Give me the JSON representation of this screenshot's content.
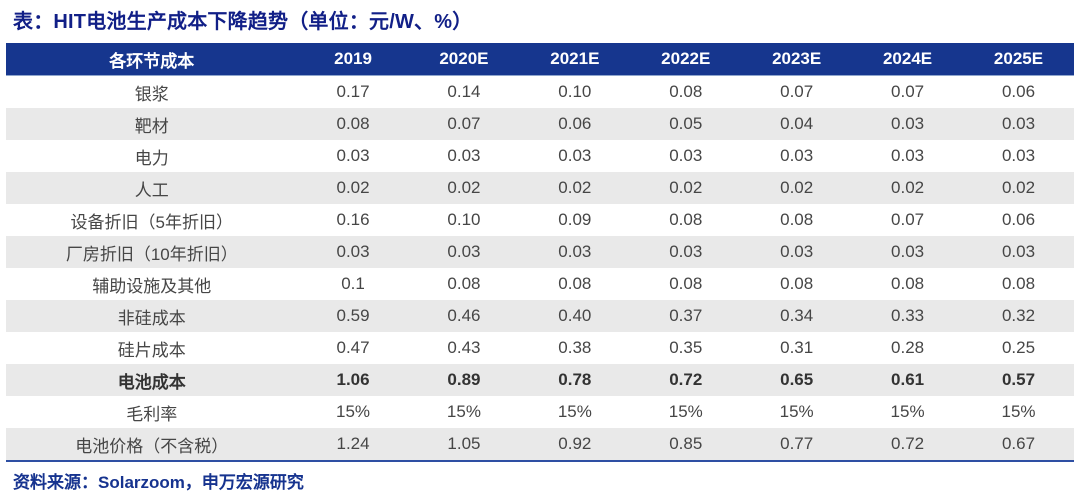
{
  "title": "表：HIT电池生产成本下降趋势（单位：元/W、%）",
  "source": "资料来源：Solarzoom，申万宏源研究",
  "colors": {
    "header_bg": "#16368E",
    "title_text": "#111F87",
    "stripe": "#E9E9E9",
    "bottom_rule": "#2E4FA3",
    "source_text": "#16338F",
    "body_text": "#464646"
  },
  "chart_data": {
    "type": "table",
    "title": "表：HIT电池生产成本下降趋势（单位：元/W、%）",
    "columns": [
      "各环节成本",
      "2019",
      "2020E",
      "2021E",
      "2022E",
      "2023E",
      "2024E",
      "2025E"
    ],
    "rows": [
      {
        "label": "银浆",
        "values": [
          "0.17",
          "0.14",
          "0.10",
          "0.08",
          "0.07",
          "0.07",
          "0.06"
        ],
        "bold": false
      },
      {
        "label": "靶材",
        "values": [
          "0.08",
          "0.07",
          "0.06",
          "0.05",
          "0.04",
          "0.03",
          "0.03"
        ],
        "bold": false
      },
      {
        "label": "电力",
        "values": [
          "0.03",
          "0.03",
          "0.03",
          "0.03",
          "0.03",
          "0.03",
          "0.03"
        ],
        "bold": false
      },
      {
        "label": "人工",
        "values": [
          "0.02",
          "0.02",
          "0.02",
          "0.02",
          "0.02",
          "0.02",
          "0.02"
        ],
        "bold": false
      },
      {
        "label": "设备折旧（5年折旧）",
        "values": [
          "0.16",
          "0.10",
          "0.09",
          "0.08",
          "0.08",
          "0.07",
          "0.06"
        ],
        "bold": false
      },
      {
        "label": "厂房折旧（10年折旧）",
        "values": [
          "0.03",
          "0.03",
          "0.03",
          "0.03",
          "0.03",
          "0.03",
          "0.03"
        ],
        "bold": false
      },
      {
        "label": "辅助设施及其他",
        "values": [
          "0.1",
          "0.08",
          "0.08",
          "0.08",
          "0.08",
          "0.08",
          "0.08"
        ],
        "bold": false
      },
      {
        "label": "非硅成本",
        "values": [
          "0.59",
          "0.46",
          "0.40",
          "0.37",
          "0.34",
          "0.33",
          "0.32"
        ],
        "bold": false
      },
      {
        "label": "硅片成本",
        "values": [
          "0.47",
          "0.43",
          "0.38",
          "0.35",
          "0.31",
          "0.28",
          "0.25"
        ],
        "bold": false
      },
      {
        "label": "电池成本",
        "values": [
          "1.06",
          "0.89",
          "0.78",
          "0.72",
          "0.65",
          "0.61",
          "0.57"
        ],
        "bold": true
      },
      {
        "label": "毛利率",
        "values": [
          "15%",
          "15%",
          "15%",
          "15%",
          "15%",
          "15%",
          "15%"
        ],
        "bold": false
      },
      {
        "label": "电池价格（不含税）",
        "values": [
          "1.24",
          "1.05",
          "0.92",
          "0.85",
          "0.77",
          "0.72",
          "0.67"
        ],
        "bold": false
      }
    ],
    "source": "资料来源：Solarzoom，申万宏源研究",
    "layout": {
      "label_col_width_pct": 27.3,
      "stripe": "even-rows"
    }
  }
}
